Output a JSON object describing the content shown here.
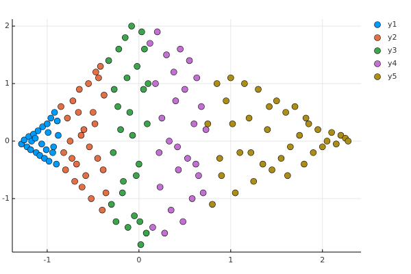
{
  "chart_data": {
    "type": "scatter",
    "xlim": [
      -1.38,
      2.42
    ],
    "ylim": [
      -1.93,
      2.12
    ],
    "xticks": [
      -1,
      0,
      1,
      2
    ],
    "yticks": [
      -1,
      0,
      1,
      2
    ],
    "grid": true,
    "legend": "top-right",
    "series": [
      {
        "name": "y1",
        "color": "#009af9",
        "x": [
          -1.28,
          -1.25,
          -1.22,
          -1.2,
          -1.18,
          -1.15,
          -1.12,
          -1.1,
          -1.08,
          -1.05,
          -1.03,
          -1.0,
          -0.98,
          -0.96,
          -0.94,
          -0.92,
          -0.9,
          -0.88,
          -1.17,
          -1.06,
          -0.99,
          -0.93,
          -1.13,
          -1.01,
          -0.89
        ],
        "values": [
          -0.05,
          0.02,
          -0.1,
          0.08,
          -0.15,
          0.12,
          -0.2,
          0.18,
          -0.25,
          0.25,
          -0.3,
          0.3,
          -0.35,
          0.4,
          -0.2,
          0.5,
          -0.4,
          0.1,
          0.0,
          -0.05,
          0.15,
          -0.1,
          0.05,
          -0.15,
          0.35
        ]
      },
      {
        "name": "y2",
        "color": "#e26f46",
        "x": [
          -0.85,
          -0.8,
          -0.78,
          -0.72,
          -0.7,
          -0.65,
          -0.62,
          -0.6,
          -0.55,
          -0.52,
          -0.5,
          -0.47,
          -0.45,
          -0.42,
          -0.4,
          -0.38,
          -0.36,
          -0.82,
          -0.75,
          -0.68,
          -0.58,
          -0.48,
          -0.44,
          -0.66,
          -0.54,
          -0.39,
          -0.73,
          -0.63
        ],
        "values": [
          0.6,
          -0.5,
          0.4,
          0.7,
          -0.7,
          0.9,
          -0.8,
          0.2,
          1.0,
          -1.0,
          0.5,
          1.2,
          -0.3,
          1.3,
          -1.2,
          0.8,
          -0.9,
          -0.2,
          0.0,
          -0.4,
          -0.6,
          0.3,
          1.1,
          0.5,
          -0.1,
          -0.5,
          -0.3,
          0.1
        ]
      },
      {
        "name": "y3",
        "color": "#3da44d",
        "x": [
          -0.33,
          -0.3,
          -0.27,
          -0.25,
          -0.22,
          -0.2,
          -0.17,
          -0.15,
          -0.12,
          -0.1,
          -0.08,
          -0.05,
          -0.02,
          0.0,
          0.03,
          0.05,
          0.08,
          0.1,
          -0.28,
          -0.18,
          -0.07,
          0.02,
          0.09,
          -0.23,
          -0.13,
          -0.03,
          0.06,
          0.01
        ],
        "values": [
          1.4,
          -1.1,
          0.9,
          -1.4,
          1.6,
          0.2,
          -0.7,
          1.8,
          -1.5,
          0.5,
          2.0,
          -1.3,
          1.3,
          -0.4,
          1.9,
          0.9,
          -1.6,
          1.0,
          -0.2,
          -0.9,
          0.1,
          -1.8,
          0.3,
          0.6,
          1.1,
          -0.6,
          1.6,
          -1.4
        ]
      },
      {
        "name": "y4",
        "color": "#c271d2",
        "x": [
          0.12,
          0.15,
          0.18,
          0.2,
          0.23,
          0.25,
          0.28,
          0.3,
          0.33,
          0.35,
          0.38,
          0.4,
          0.43,
          0.45,
          0.48,
          0.5,
          0.53,
          0.55,
          0.58,
          0.6,
          0.63,
          0.65,
          0.68,
          0.7,
          0.73,
          0.22,
          0.42,
          0.62
        ],
        "values": [
          1.7,
          -1.5,
          1.0,
          1.9,
          -0.8,
          0.4,
          -1.6,
          1.5,
          0.0,
          -1.2,
          1.2,
          0.7,
          -0.5,
          1.6,
          -1.4,
          0.9,
          -0.3,
          1.4,
          -1.0,
          0.3,
          1.1,
          -0.6,
          0.6,
          -0.9,
          0.2,
          -0.2,
          -0.1,
          -0.4
        ]
      },
      {
        "name": "y5",
        "color": "#ac8d18",
        "x": [
          0.75,
          0.8,
          0.85,
          0.9,
          0.95,
          1.0,
          1.05,
          1.1,
          1.15,
          1.2,
          1.25,
          1.3,
          1.35,
          1.4,
          1.45,
          1.5,
          1.55,
          1.6,
          1.65,
          1.7,
          1.75,
          1.8,
          1.85,
          1.9,
          1.95,
          2.0,
          2.05,
          2.1,
          2.15,
          2.2,
          2.25,
          2.28,
          0.88,
          1.02,
          1.22,
          1.42,
          1.62,
          1.82
        ],
        "values": [
          0.3,
          -1.1,
          1.0,
          -0.6,
          0.7,
          1.1,
          -0.9,
          -0.2,
          1.0,
          0.4,
          -0.7,
          0.9,
          -0.4,
          0.2,
          -0.5,
          0.7,
          -0.3,
          0.5,
          -0.1,
          0.6,
          0.1,
          -0.4,
          0.3,
          -0.2,
          0.2,
          -0.1,
          0.0,
          0.15,
          -0.05,
          0.1,
          0.05,
          0.0,
          -0.3,
          0.3,
          -0.2,
          0.6,
          -0.6,
          0.4
        ]
      }
    ]
  }
}
